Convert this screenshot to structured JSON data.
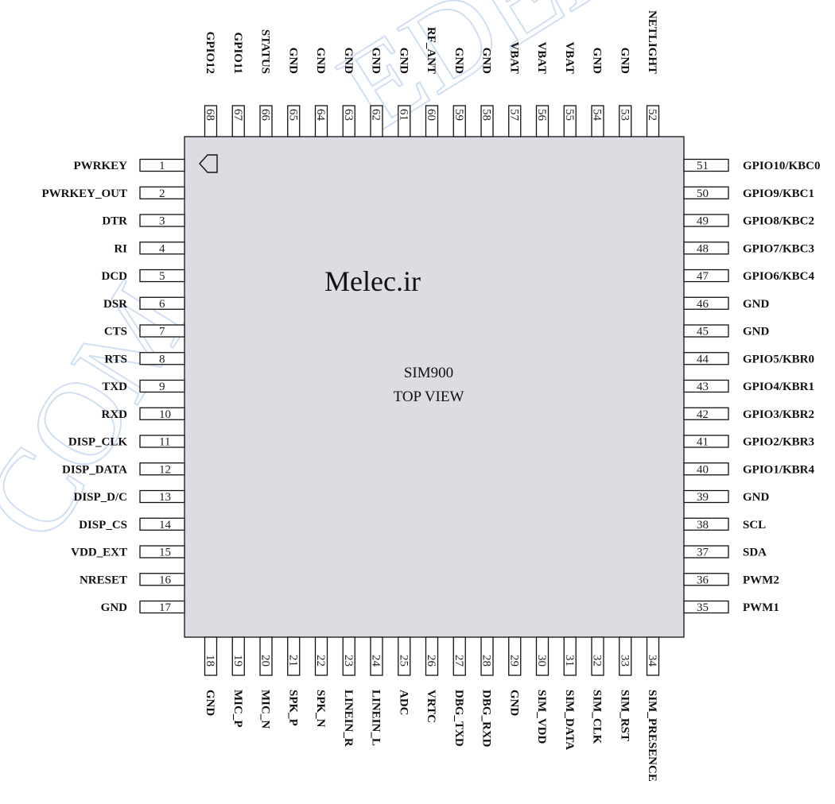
{
  "chip": {
    "name": "SIM900",
    "view": "TOP VIEW",
    "watermark": "Melec.ir"
  },
  "pins": {
    "left": [
      {
        "num": "1",
        "label": "PWRKEY"
      },
      {
        "num": "2",
        "label": "PWRKEY_OUT"
      },
      {
        "num": "3",
        "label": "DTR"
      },
      {
        "num": "4",
        "label": "RI"
      },
      {
        "num": "5",
        "label": "DCD"
      },
      {
        "num": "6",
        "label": "DSR"
      },
      {
        "num": "7",
        "label": "CTS"
      },
      {
        "num": "8",
        "label": "RTS"
      },
      {
        "num": "9",
        "label": "TXD"
      },
      {
        "num": "10",
        "label": "RXD"
      },
      {
        "num": "11",
        "label": "DISP_CLK"
      },
      {
        "num": "12",
        "label": "DISP_DATA"
      },
      {
        "num": "13",
        "label": "DISP_D/C"
      },
      {
        "num": "14",
        "label": "DISP_CS"
      },
      {
        "num": "15",
        "label": "VDD_EXT"
      },
      {
        "num": "16",
        "label": "NRESET"
      },
      {
        "num": "17",
        "label": "GND"
      }
    ],
    "right": [
      {
        "num": "51",
        "label": "GPIO10/KBC0"
      },
      {
        "num": "50",
        "label": "GPIO9/KBC1"
      },
      {
        "num": "49",
        "label": "GPIO8/KBC2"
      },
      {
        "num": "48",
        "label": "GPIO7/KBC3"
      },
      {
        "num": "47",
        "label": "GPIO6/KBC4"
      },
      {
        "num": "46",
        "label": "GND"
      },
      {
        "num": "45",
        "label": "GND"
      },
      {
        "num": "44",
        "label": "GPIO5/KBR0"
      },
      {
        "num": "43",
        "label": "GPIO4/KBR1"
      },
      {
        "num": "42",
        "label": "GPIO3/KBR2"
      },
      {
        "num": "41",
        "label": "GPIO2/KBR3"
      },
      {
        "num": "40",
        "label": "GPIO1/KBR4"
      },
      {
        "num": "39",
        "label": "GND"
      },
      {
        "num": "38",
        "label": "SCL"
      },
      {
        "num": "37",
        "label": "SDA"
      },
      {
        "num": "36",
        "label": "PWM2"
      },
      {
        "num": "35",
        "label": "PWM1"
      }
    ],
    "top": [
      {
        "num": "68",
        "label": "GPIO12"
      },
      {
        "num": "67",
        "label": "GPIO11"
      },
      {
        "num": "66",
        "label": "STATUS"
      },
      {
        "num": "65",
        "label": "GND"
      },
      {
        "num": "64",
        "label": "GND"
      },
      {
        "num": "63",
        "label": "GND"
      },
      {
        "num": "62",
        "label": "GND"
      },
      {
        "num": "61",
        "label": "GND"
      },
      {
        "num": "60",
        "label": "RF_ANT"
      },
      {
        "num": "59",
        "label": "GND"
      },
      {
        "num": "58",
        "label": "GND"
      },
      {
        "num": "57",
        "label": "VBAT"
      },
      {
        "num": "56",
        "label": "VBAT"
      },
      {
        "num": "55",
        "label": "VBAT"
      },
      {
        "num": "54",
        "label": "GND"
      },
      {
        "num": "53",
        "label": "GND"
      },
      {
        "num": "52",
        "label": "NETLIGHT"
      }
    ],
    "bottom": [
      {
        "num": "18",
        "label": "GND"
      },
      {
        "num": "19",
        "label": "MIC_P"
      },
      {
        "num": "20",
        "label": "MIC_N"
      },
      {
        "num": "21",
        "label": "SPK_P"
      },
      {
        "num": "22",
        "label": "SPK_N"
      },
      {
        "num": "23",
        "label": "LINEIN_R"
      },
      {
        "num": "24",
        "label": "LINEIN_L"
      },
      {
        "num": "25",
        "label": "ADC"
      },
      {
        "num": "26",
        "label": "VRTC"
      },
      {
        "num": "27",
        "label": "DBG_TXD"
      },
      {
        "num": "28",
        "label": "DBG_RXD"
      },
      {
        "num": "29",
        "label": "GND"
      },
      {
        "num": "30",
        "label": "SIM_VDD"
      },
      {
        "num": "31",
        "label": "SIM_DATA"
      },
      {
        "num": "32",
        "label": "SIM_CLK"
      },
      {
        "num": "33",
        "label": "SIM_RST"
      },
      {
        "num": "34",
        "label": "SIM_PRESENCE"
      }
    ]
  },
  "colors": {
    "chip_fill": "#dcdde3",
    "outline": "#111111",
    "background": "#ffffff",
    "background_watermark": "#a9c4ea"
  }
}
